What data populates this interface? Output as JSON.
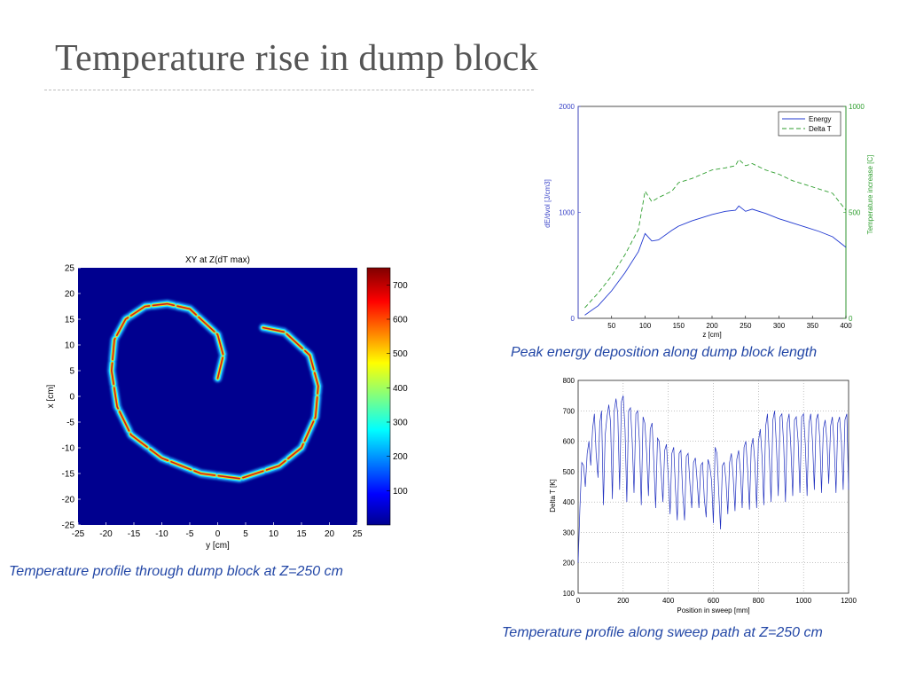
{
  "slide": {
    "title": "Temperature rise in dump block"
  },
  "captions": {
    "heatmap": "Temperature profile through dump block at Z=250 cm",
    "energy": "Peak energy deposition along dump block length",
    "sweep": "Temperature profile along sweep path at Z=250 cm"
  },
  "chart_data": [
    {
      "id": "heatmap",
      "type": "heatmap",
      "title": "XY at Z(dT max)",
      "xlabel": "y [cm]",
      "ylabel": "x [cm]",
      "xlim": [
        -25,
        25
      ],
      "ylim": [
        -25,
        25
      ],
      "xticks": [
        -25,
        -20,
        -15,
        -10,
        -5,
        0,
        5,
        10,
        15,
        20,
        25
      ],
      "yticks": [
        25,
        20,
        15,
        10,
        5,
        0,
        -5,
        -10,
        -15,
        -20,
        -25
      ],
      "colorbar": {
        "min": 0,
        "max": 750,
        "ticks": [
          100,
          200,
          300,
          400,
          500,
          600,
          700
        ]
      },
      "colors": {
        "background": "#00008f",
        "ridge": "#c8201c",
        "halo": "#25e8ff"
      },
      "spiral_path": [
        [
          0,
          3.5
        ],
        [
          1,
          8
        ],
        [
          0,
          12
        ],
        [
          -2,
          14
        ],
        [
          -5,
          17
        ],
        [
          -9,
          18
        ],
        [
          -13,
          17.5
        ],
        [
          -16.5,
          15
        ],
        [
          -18.5,
          11
        ],
        [
          -19,
          5
        ],
        [
          -18,
          -2
        ],
        [
          -15.5,
          -7.5
        ],
        [
          -10,
          -12
        ],
        [
          -3,
          -15
        ],
        [
          4,
          -16
        ],
        [
          11,
          -13.5
        ],
        [
          15,
          -10
        ],
        [
          17.5,
          -4
        ],
        [
          18,
          2
        ],
        [
          16.5,
          8
        ],
        [
          12,
          12.5
        ],
        [
          7.5,
          13.5
        ]
      ]
    },
    {
      "id": "energy",
      "type": "line",
      "xlabel": "z [cm]",
      "ylabel": "dE/dvol [J/cm3]",
      "y2label": "Temperature increase [C]",
      "xlim": [
        0,
        400
      ],
      "ylim": [
        0,
        2000
      ],
      "y2lim": [
        0,
        1000
      ],
      "xticks": [
        50,
        100,
        150,
        200,
        250,
        300,
        350,
        400
      ],
      "yticks": [
        0,
        1000,
        2000
      ],
      "y2ticks": [
        0,
        500,
        1000
      ],
      "legend_position": "top-right",
      "series": [
        {
          "name": "Energy",
          "axis": "left",
          "color": "#2038d0",
          "dash": "solid",
          "x": [
            10,
            30,
            50,
            70,
            90,
            100,
            110,
            120,
            140,
            150,
            170,
            200,
            220,
            235,
            240,
            250,
            260,
            280,
            300,
            320,
            340,
            360,
            380,
            400
          ],
          "y": [
            30,
            120,
            260,
            430,
            630,
            800,
            730,
            740,
            830,
            870,
            920,
            980,
            1010,
            1020,
            1060,
            1010,
            1030,
            990,
            940,
            900,
            860,
            820,
            770,
            670
          ]
        },
        {
          "name": "Delta T",
          "axis": "right",
          "color": "#2e9e2e",
          "dash": "dashed",
          "x": [
            10,
            30,
            50,
            70,
            90,
            100,
            110,
            120,
            140,
            150,
            170,
            200,
            220,
            235,
            240,
            250,
            260,
            280,
            300,
            320,
            340,
            360,
            380,
            400
          ],
          "y": [
            50,
            120,
            200,
            300,
            420,
            600,
            550,
            570,
            600,
            640,
            660,
            700,
            710,
            720,
            750,
            720,
            730,
            700,
            680,
            650,
            630,
            610,
            590,
            510
          ]
        }
      ]
    },
    {
      "id": "sweep",
      "type": "line",
      "xlabel": "Position in sweep [mm]",
      "ylabel": "Delta T [K]",
      "xlim": [
        0,
        1200
      ],
      "ylim": [
        100,
        800
      ],
      "xticks": [
        0,
        200,
        400,
        600,
        800,
        1000,
        1200
      ],
      "yticks": [
        100,
        200,
        300,
        400,
        500,
        600,
        700,
        800
      ],
      "grid": true,
      "series": [
        {
          "color": "#1f2fbf",
          "x": [
            0,
            8,
            16,
            24,
            32,
            40,
            48,
            56,
            64,
            72,
            80,
            88,
            96,
            104,
            112,
            120,
            128,
            136,
            144,
            152,
            160,
            168,
            176,
            184,
            192,
            200,
            208,
            216,
            224,
            232,
            240,
            248,
            256,
            264,
            272,
            280,
            288,
            296,
            304,
            312,
            320,
            328,
            336,
            344,
            352,
            360,
            368,
            376,
            384,
            392,
            400,
            408,
            416,
            424,
            432,
            440,
            448,
            456,
            464,
            472,
            480,
            488,
            496,
            504,
            512,
            520,
            528,
            536,
            544,
            552,
            560,
            568,
            576,
            584,
            592,
            600,
            608,
            616,
            624,
            632,
            640,
            648,
            656,
            664,
            672,
            680,
            688,
            696,
            704,
            712,
            720,
            728,
            736,
            744,
            752,
            760,
            768,
            776,
            784,
            792,
            800,
            808,
            816,
            824,
            832,
            840,
            848,
            856,
            864,
            872,
            880,
            888,
            896,
            904,
            912,
            920,
            928,
            936,
            944,
            952,
            960,
            968,
            976,
            984,
            992,
            1000,
            1008,
            1016,
            1024,
            1032,
            1040,
            1048,
            1056,
            1064,
            1072,
            1080,
            1088,
            1096,
            1104,
            1112,
            1120,
            1128,
            1136,
            1144,
            1152,
            1160,
            1168,
            1176,
            1184,
            1192,
            1200
          ],
          "y": [
            200,
            380,
            530,
            520,
            450,
            560,
            600,
            520,
            640,
            690,
            560,
            480,
            660,
            700,
            390,
            620,
            680,
            720,
            660,
            410,
            700,
            740,
            690,
            440,
            730,
            750,
            640,
            400,
            700,
            710,
            600,
            430,
            690,
            700,
            600,
            390,
            680,
            660,
            560,
            420,
            640,
            660,
            530,
            380,
            610,
            600,
            500,
            400,
            570,
            590,
            480,
            360,
            560,
            580,
            440,
            340,
            560,
            570,
            430,
            340,
            550,
            560,
            460,
            380,
            530,
            545,
            470,
            380,
            520,
            530,
            410,
            350,
            540,
            520,
            470,
            330,
            580,
            560,
            430,
            310,
            520,
            530,
            470,
            360,
            530,
            560,
            480,
            370,
            540,
            570,
            500,
            380,
            580,
            600,
            510,
            375,
            580,
            610,
            530,
            380,
            600,
            640,
            550,
            390,
            650,
            690,
            560,
            400,
            670,
            700,
            580,
            420,
            680,
            690,
            590,
            400,
            660,
            690,
            580,
            420,
            670,
            680,
            600,
            430,
            680,
            690,
            590,
            420,
            660,
            690,
            600,
            440,
            670,
            690,
            610,
            430,
            640,
            670,
            600,
            460,
            650,
            680,
            590,
            430,
            660,
            680,
            600,
            440,
            670,
            690,
            440
          ]
        }
      ]
    }
  ]
}
